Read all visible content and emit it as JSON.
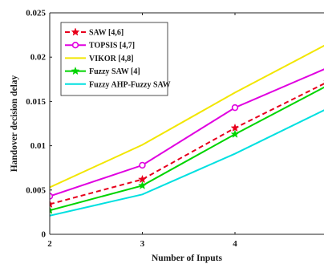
{
  "chart_data": {
    "type": "line",
    "title": "",
    "xlabel": "Number of Inputs",
    "ylabel": "Handover decision delay",
    "x": [
      2,
      3,
      4,
      5
    ],
    "x_ticks": [
      "2",
      "3",
      "4"
    ],
    "y_ticks": [
      "0",
      "0.005",
      "0.01",
      "0.015",
      "0.02",
      "0.025"
    ],
    "xlim": [
      2,
      5
    ],
    "ylim": [
      0,
      0.025
    ],
    "grid": false,
    "legend_position": "top-left",
    "series": [
      {
        "name": "SAW [4,6]",
        "values": [
          0.0034,
          0.0062,
          0.012,
          0.0172
        ],
        "color": "#e8001c",
        "dashed": true,
        "marker": "star"
      },
      {
        "name": "TOPSIS [4,7]",
        "values": [
          0.0043,
          0.0078,
          0.0143,
          0.0188
        ],
        "color": "#e000e0",
        "dashed": false,
        "marker": "circle"
      },
      {
        "name": "VIKOR [4,8]",
        "values": [
          0.0053,
          0.0101,
          0.016,
          0.0215
        ],
        "color": "#f2e600",
        "dashed": false,
        "marker": "none"
      },
      {
        "name": "Fuzzy SAW [4]",
        "values": [
          0.0027,
          0.0055,
          0.0113,
          0.0168
        ],
        "color": "#00d400",
        "dashed": false,
        "marker": "star"
      },
      {
        "name": "Fuzzy AHP-Fuzzy SAW",
        "values": [
          0.0021,
          0.0045,
          0.0091,
          0.0142
        ],
        "color": "#00e0e0",
        "dashed": false,
        "marker": "none"
      }
    ]
  }
}
